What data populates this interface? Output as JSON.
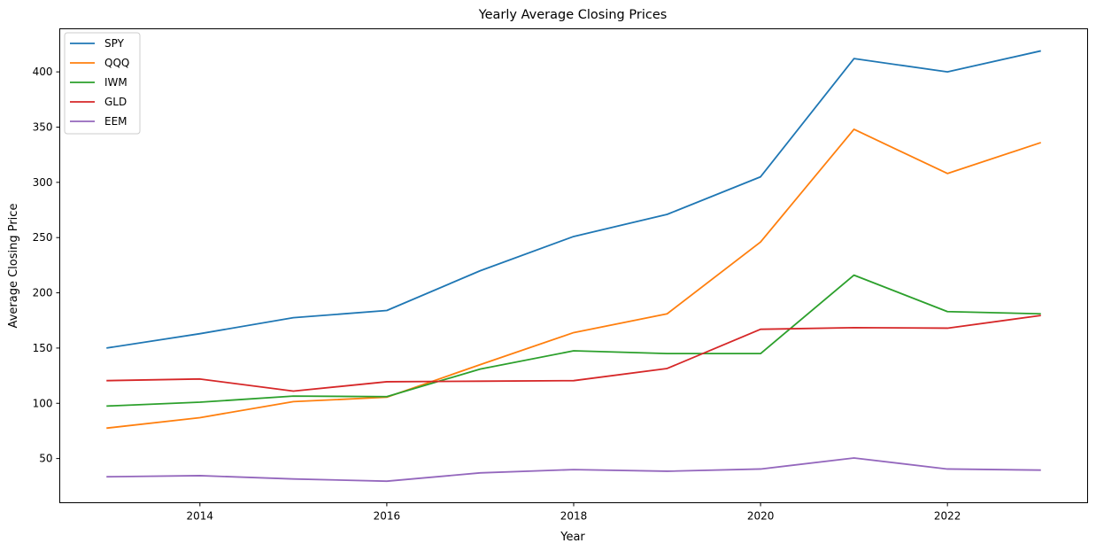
{
  "chart_data": {
    "type": "line",
    "title": "Yearly Average Closing Prices",
    "xlabel": "Year",
    "ylabel": "Average Closing Price",
    "x": [
      2013,
      2014,
      2015,
      2016,
      2017,
      2018,
      2019,
      2020,
      2021,
      2022,
      2023
    ],
    "xticks": [
      2014,
      2016,
      2018,
      2020,
      2022
    ],
    "yticks": [
      50,
      100,
      150,
      200,
      250,
      300,
      350,
      400
    ],
    "xlim": [
      2012.5,
      2023.5
    ],
    "ylim": [
      10,
      439
    ],
    "grid": false,
    "legend": "top-left",
    "series": [
      {
        "name": "SPY",
        "color": "#1f77b4",
        "values": [
          150,
          163,
          177.5,
          184,
          220,
          251,
          271,
          305,
          412,
          400,
          419
        ]
      },
      {
        "name": "QQQ",
        "color": "#ff7f0e",
        "values": [
          77.5,
          87,
          101.5,
          105.5,
          135,
          164,
          181,
          246,
          348,
          308,
          336
        ]
      },
      {
        "name": "IWM",
        "color": "#2ca02c",
        "values": [
          97.5,
          101,
          106.5,
          106,
          131,
          147.5,
          145,
          145,
          216,
          183,
          181
        ]
      },
      {
        "name": "GLD",
        "color": "#d62728",
        "values": [
          120.5,
          122,
          111,
          119.5,
          120,
          120.5,
          131.5,
          167,
          168.5,
          168,
          179.5
        ]
      },
      {
        "name": "EEM",
        "color": "#9467bd",
        "values": [
          33.5,
          34.5,
          31.5,
          29.5,
          37,
          40,
          38.5,
          40.5,
          50.5,
          40.5,
          39.5
        ]
      }
    ]
  }
}
